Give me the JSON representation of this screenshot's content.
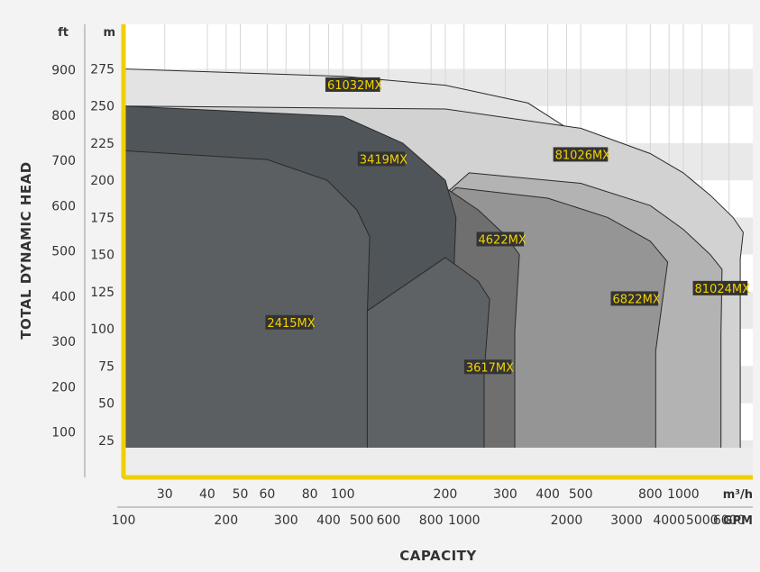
{
  "chart_data": {
    "type": "area",
    "title": "",
    "xlabel": "CAPACITY",
    "ylabel": "TOTAL DYNAMIC HEAD",
    "x_scale": "log",
    "x_units": {
      "primary": "m³/h",
      "secondary": "GPM"
    },
    "y_units": {
      "left": "ft",
      "right": "m"
    },
    "x_ticks_m3h": [
      "30",
      "40",
      "50",
      "60",
      "80",
      "100",
      "200",
      "300",
      "400",
      "500",
      "800",
      "1000"
    ],
    "x_ticks_gpm": [
      "100",
      "200",
      "300",
      "400",
      "500",
      "600",
      "800",
      "1000",
      "2000",
      "3000",
      "4000",
      "5000",
      "6000"
    ],
    "y_ticks_ft": [
      "100",
      "200",
      "300",
      "400",
      "500",
      "600",
      "700",
      "800",
      "900"
    ],
    "y_ticks_m": [
      "25",
      "50",
      "75",
      "100",
      "125",
      "150",
      "175",
      "200",
      "225",
      "250",
      "275"
    ],
    "xlim_m3h": [
      22.7,
      1600
    ],
    "ylim_m": [
      0,
      305
    ],
    "grid": true,
    "series": [
      {
        "name": "61032MX",
        "color": "#e3e3e3",
        "x": [
          22.7,
          100,
          200,
          350,
          450,
          500
        ],
        "y": [
          275,
          270,
          264,
          252,
          236,
          226
        ]
      },
      {
        "name": "81026MX",
        "color": "#d2d2d2",
        "x": [
          22.7,
          200,
          500,
          800,
          1000,
          1200,
          1400,
          1500,
          1470
        ],
        "y": [
          250,
          248,
          235,
          218,
          205,
          190,
          175,
          165,
          147
        ]
      },
      {
        "name": "81024MX",
        "color": "#b3b3b3",
        "x": [
          235,
          500,
          800,
          1000,
          1200,
          1300,
          1290
        ],
        "y": [
          205,
          198,
          183,
          167,
          150,
          140,
          96
        ]
      },
      {
        "name": "6822MX",
        "color": "#959595",
        "x": [
          215,
          400,
          600,
          800,
          900,
          830
        ],
        "y": [
          195,
          188,
          175,
          159,
          145,
          85
        ]
      },
      {
        "name": "4622MX",
        "color": "#6f6f6f",
        "x": [
          200,
          250,
          300,
          330,
          320
        ],
        "y": [
          195,
          180,
          163,
          150,
          98
        ]
      },
      {
        "name": "3419MX",
        "color": "#505559",
        "x": [
          22.7,
          100,
          150,
          200,
          215,
          210
        ],
        "y": [
          250,
          243,
          225,
          200,
          175,
          115
        ]
      },
      {
        "name": "3617MX",
        "color": "#5e6265",
        "x": [
          200,
          250,
          270,
          260
        ],
        "y": [
          148,
          132,
          120,
          70
        ]
      },
      {
        "name": "2415MX",
        "color": "#5b5f61",
        "x": [
          22.7,
          60,
          90,
          110,
          120,
          118
        ],
        "y": [
          220,
          214,
          200,
          180,
          162,
          110
        ]
      }
    ],
    "legend": "inline labels"
  }
}
